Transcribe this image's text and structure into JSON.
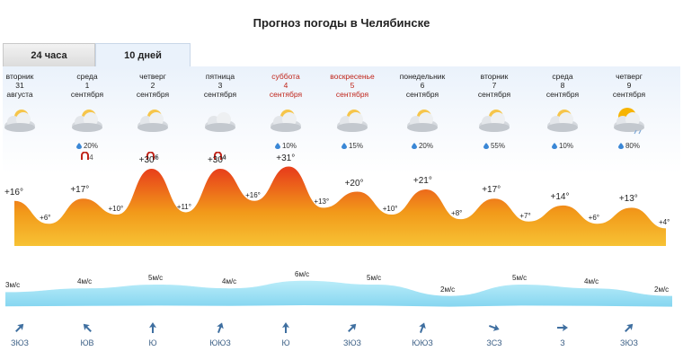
{
  "title": "Прогноз погоды в Челябинске",
  "tabs": [
    {
      "label": "24 часа"
    },
    {
      "label": "10 дней"
    }
  ],
  "days": [
    {
      "weekday": "вторник",
      "date": "31",
      "month": "августа",
      "red": false,
      "precip": "",
      "mag": ""
    },
    {
      "weekday": "среда",
      "date": "1",
      "month": "сентября",
      "red": false,
      "precip": "20%",
      "mag": "4"
    },
    {
      "weekday": "четверг",
      "date": "2",
      "month": "сентября",
      "red": false,
      "precip": "",
      "mag": "6"
    },
    {
      "weekday": "пятница",
      "date": "3",
      "month": "сентября",
      "red": false,
      "precip": "",
      "mag": "4"
    },
    {
      "weekday": "суббота",
      "date": "4",
      "month": "сентября",
      "red": true,
      "precip": "10%",
      "mag": ""
    },
    {
      "weekday": "воскресенье",
      "date": "5",
      "month": "сентября",
      "red": true,
      "precip": "15%",
      "mag": ""
    },
    {
      "weekday": "понедельник",
      "date": "6",
      "month": "сентября",
      "red": false,
      "precip": "20%",
      "mag": ""
    },
    {
      "weekday": "вторник",
      "date": "7",
      "month": "сентября",
      "red": false,
      "precip": "55%",
      "mag": ""
    },
    {
      "weekday": "среда",
      "date": "8",
      "month": "сентября",
      "red": false,
      "precip": "10%",
      "mag": ""
    },
    {
      "weekday": "четверг",
      "date": "9",
      "month": "сентября",
      "red": false,
      "precip": "80%",
      "mag": ""
    }
  ],
  "temps": [
    {
      "label": "+16°",
      "value": 16
    },
    {
      "label": "+6°",
      "value": 6
    },
    {
      "label": "+17°",
      "value": 17
    },
    {
      "label": "+10°",
      "value": 10
    },
    {
      "label": "+30°",
      "value": 30
    },
    {
      "label": "+11°",
      "value": 11
    },
    {
      "label": "+30°",
      "value": 30
    },
    {
      "label": "+16°",
      "value": 16
    },
    {
      "label": "+31°",
      "value": 31
    },
    {
      "label": "+13°",
      "value": 13
    },
    {
      "label": "+20°",
      "value": 20
    },
    {
      "label": "+10°",
      "value": 10
    },
    {
      "label": "+21°",
      "value": 21
    },
    {
      "label": "+8°",
      "value": 8
    },
    {
      "label": "+17°",
      "value": 17
    },
    {
      "label": "+7°",
      "value": 7
    },
    {
      "label": "+14°",
      "value": 14
    },
    {
      "label": "+6°",
      "value": 6
    },
    {
      "label": "+13°",
      "value": 13
    },
    {
      "label": "+4°",
      "value": 4
    }
  ],
  "wind": [
    {
      "speed": "3м/с",
      "value": 3
    },
    {
      "speed": "4м/с",
      "value": 4
    },
    {
      "speed": "5м/с",
      "value": 5
    },
    {
      "speed": "4м/с",
      "value": 4
    },
    {
      "speed": "6м/с",
      "value": 6
    },
    {
      "speed": "5м/с",
      "value": 5
    },
    {
      "speed": "2м/с",
      "value": 2
    },
    {
      "speed": "5м/с",
      "value": 5
    },
    {
      "speed": "4м/с",
      "value": 4
    },
    {
      "speed": "2м/с",
      "value": 2
    }
  ],
  "wind_dirs": [
    {
      "label": "ЗЮЗ",
      "angle": 45
    },
    {
      "label": "ЮВ",
      "angle": -45
    },
    {
      "label": "Ю",
      "angle": 0
    },
    {
      "label": "ЮЮЗ",
      "angle": 20
    },
    {
      "label": "Ю",
      "angle": 0
    },
    {
      "label": "ЗЮЗ",
      "angle": 45
    },
    {
      "label": "ЮЮЗ",
      "angle": 20
    },
    {
      "label": "ЗСЗ",
      "angle": 110
    },
    {
      "label": "З",
      "angle": 90
    },
    {
      "label": "ЗЮЗ",
      "angle": 45
    }
  ],
  "colors": {
    "temp_top": "#e8421b",
    "temp_mid": "#f29a1a",
    "temp_bottom": "#f7c335",
    "wind_top": "#bfeffa",
    "wind_bottom": "#7fd3ef",
    "arrow": "#3f6fa0",
    "drop": "#3a87d6",
    "mag": "#c0251a"
  }
}
